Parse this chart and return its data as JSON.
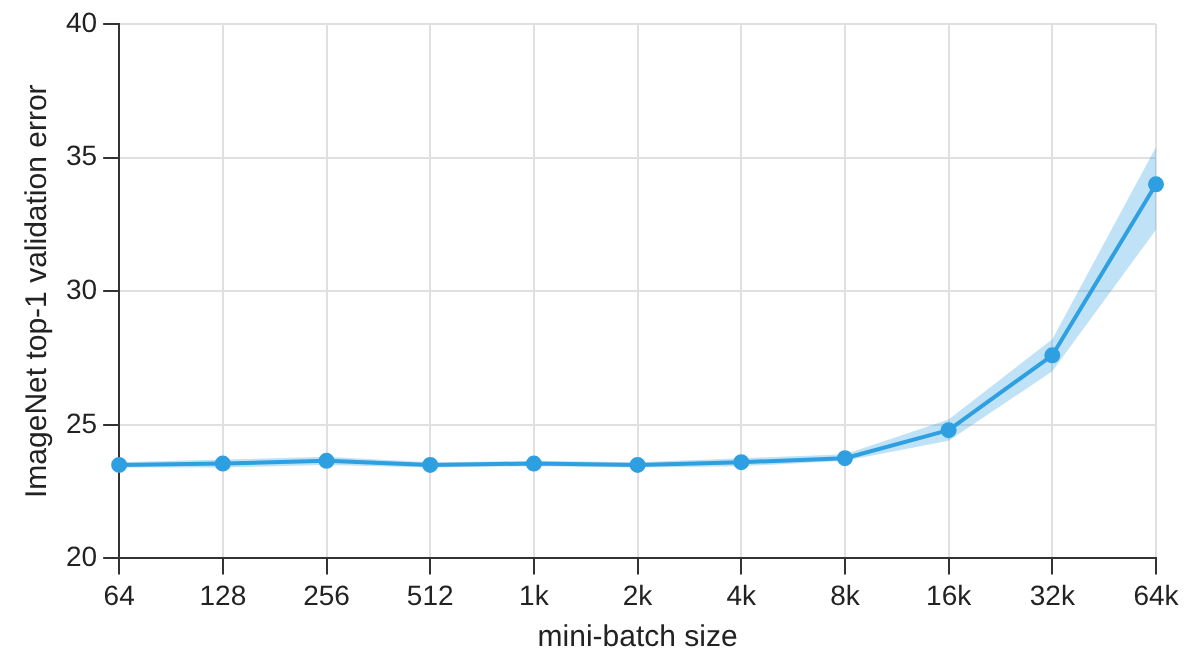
{
  "chart_data": {
    "type": "line",
    "xlabel": "mini-batch size",
    "ylabel": "ImageNet top-1 validation error",
    "categories": [
      "64",
      "128",
      "256",
      "512",
      "1k",
      "2k",
      "4k",
      "8k",
      "16k",
      "32k",
      "64k"
    ],
    "series": [
      {
        "color": "#2e9fe0",
        "values": [
          23.5,
          23.55,
          23.65,
          23.5,
          23.55,
          23.5,
          23.6,
          23.75,
          24.8,
          27.6,
          34.0
        ],
        "lower": [
          23.4,
          23.4,
          23.5,
          23.4,
          23.45,
          23.4,
          23.45,
          23.65,
          24.4,
          27.0,
          32.3
        ],
        "upper": [
          23.6,
          23.7,
          23.8,
          23.6,
          23.65,
          23.6,
          23.75,
          23.9,
          25.2,
          28.2,
          35.4
        ]
      }
    ],
    "ylim": [
      20,
      40
    ],
    "yticks": [
      20,
      25,
      30,
      35,
      40
    ],
    "grid": true,
    "marker": "circle",
    "line_style": "solid",
    "legend": false
  }
}
